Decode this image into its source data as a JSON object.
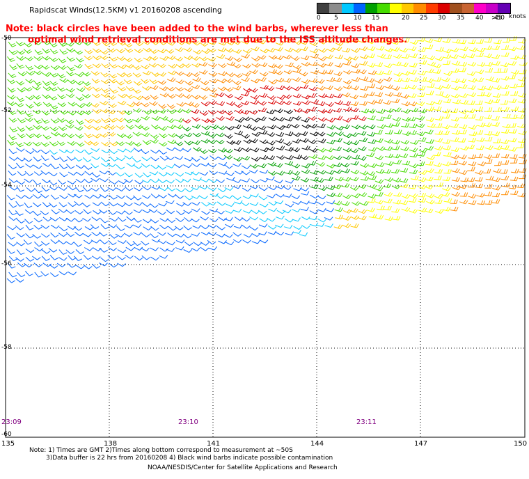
{
  "title": "Rapidscat Winds(12.5KM) v1 20160208 ascending",
  "note": {
    "line1": "Note: black circles have been added to the wind barbs, wherever less than",
    "line2": "optimal wind retrieval conditions are met due to the ISS altitude changes."
  },
  "legend": {
    "unit": "knots",
    "colors": [
      "#404040",
      "#8c8c8c",
      "#00c8ff",
      "#0064ff",
      "#00a000",
      "#46dc00",
      "#ffff00",
      "#ffc800",
      "#ff8c00",
      "#ff3c00",
      "#dc0000",
      "#a0501e",
      "#c86432",
      "#ff00c8",
      "#c800c8",
      "#6400b4"
    ],
    "tick_labels": [
      "0",
      "5",
      "10",
      "15",
      "20",
      "25",
      "30",
      "35",
      "40",
      "45",
      ">50"
    ]
  },
  "lat_labels": [
    "-50",
    "-52",
    "-54",
    "-56",
    "-58",
    "-60"
  ],
  "lon_labels": [
    "135",
    "138",
    "141",
    "144",
    "147",
    "150"
  ],
  "time_labels": [
    "23:09",
    "23:10",
    "23:11"
  ],
  "footer": {
    "line1": "Note: 1) Times are GMT 2)Times along bottom correspond to measurement at ~50S",
    "line2": "3)Data buffer is 22 hrs from 20160208 4) Black wind barbs indicate possible contamination",
    "line3": "NOAA/NESDIS/Center for Satellite Applications and Research"
  }
}
